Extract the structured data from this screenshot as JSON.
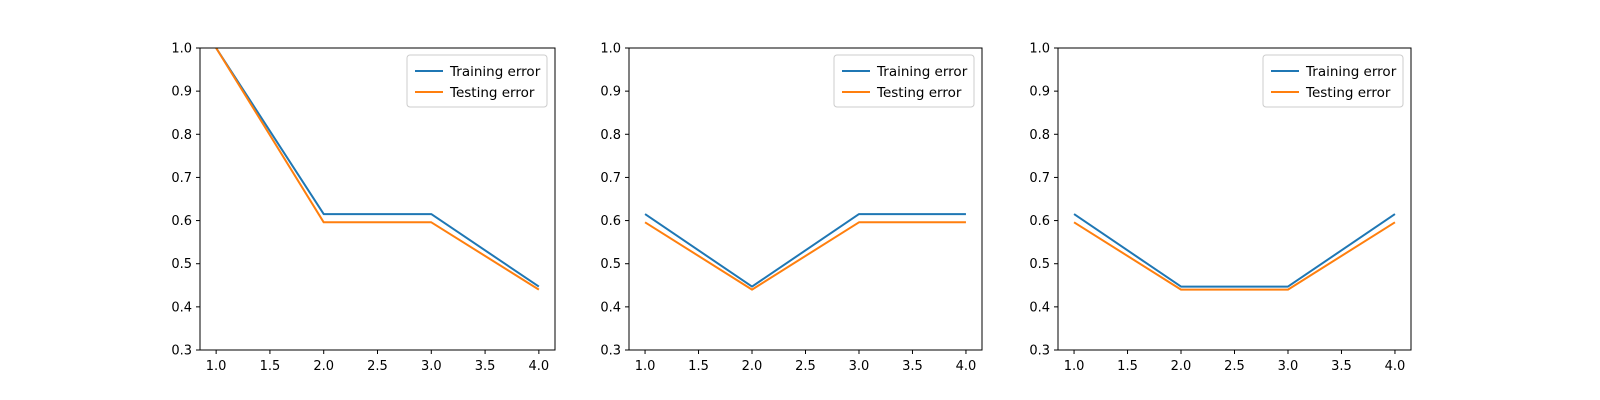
{
  "chart_data": [
    {
      "type": "line",
      "x": [
        1.0,
        2.0,
        3.0,
        4.0
      ],
      "series": [
        {
          "name": "Training error",
          "values": [
            1.0,
            0.615,
            0.615,
            0.447
          ]
        },
        {
          "name": "Testing error",
          "values": [
            1.0,
            0.596,
            0.596,
            0.44
          ]
        }
      ],
      "xlim": [
        0.85,
        4.15
      ],
      "ylim": [
        0.3,
        1.0
      ],
      "xticks": [
        1.0,
        1.5,
        2.0,
        2.5,
        3.0,
        3.5,
        4.0
      ],
      "xtick_labels": [
        "1.0",
        "1.5",
        "2.0",
        "2.5",
        "3.0",
        "3.5",
        "4.0"
      ],
      "yticks": [
        0.3,
        0.4,
        0.5,
        0.6,
        0.7,
        0.8,
        0.9,
        1.0
      ],
      "ytick_labels": [
        "0.3",
        "0.4",
        "0.5",
        "0.6",
        "0.7",
        "0.8",
        "0.9",
        "1.0"
      ],
      "legend": "top-right",
      "grid": false
    },
    {
      "type": "line",
      "x": [
        1.0,
        2.0,
        3.0,
        4.0
      ],
      "series": [
        {
          "name": "Training error",
          "values": [
            0.615,
            0.447,
            0.615,
            0.615
          ]
        },
        {
          "name": "Testing error",
          "values": [
            0.596,
            0.44,
            0.596,
            0.596
          ]
        }
      ],
      "xlim": [
        0.85,
        4.15
      ],
      "ylim": [
        0.3,
        1.0
      ],
      "xticks": [
        1.0,
        1.5,
        2.0,
        2.5,
        3.0,
        3.5,
        4.0
      ],
      "xtick_labels": [
        "1.0",
        "1.5",
        "2.0",
        "2.5",
        "3.0",
        "3.5",
        "4.0"
      ],
      "yticks": [
        0.3,
        0.4,
        0.5,
        0.6,
        0.7,
        0.8,
        0.9,
        1.0
      ],
      "ytick_labels": [
        "0.3",
        "0.4",
        "0.5",
        "0.6",
        "0.7",
        "0.8",
        "0.9",
        "1.0"
      ],
      "legend": "top-right",
      "grid": false
    },
    {
      "type": "line",
      "x": [
        1.0,
        2.0,
        3.0,
        4.0
      ],
      "series": [
        {
          "name": "Training error",
          "values": [
            0.615,
            0.447,
            0.447,
            0.615
          ]
        },
        {
          "name": "Testing error",
          "values": [
            0.596,
            0.44,
            0.44,
            0.596
          ]
        }
      ],
      "xlim": [
        0.85,
        4.15
      ],
      "ylim": [
        0.3,
        1.0
      ],
      "xticks": [
        1.0,
        1.5,
        2.0,
        2.5,
        3.0,
        3.5,
        4.0
      ],
      "xtick_labels": [
        "1.0",
        "1.5",
        "2.0",
        "2.5",
        "3.0",
        "3.5",
        "4.0"
      ],
      "yticks": [
        0.3,
        0.4,
        0.5,
        0.6,
        0.7,
        0.8,
        0.9,
        1.0
      ],
      "ytick_labels": [
        "0.3",
        "0.4",
        "0.5",
        "0.6",
        "0.7",
        "0.8",
        "0.9",
        "1.0"
      ],
      "legend": "top-right",
      "grid": false
    }
  ],
  "colors": {
    "training": "#1f77b4",
    "testing": "#ff7f0e"
  }
}
